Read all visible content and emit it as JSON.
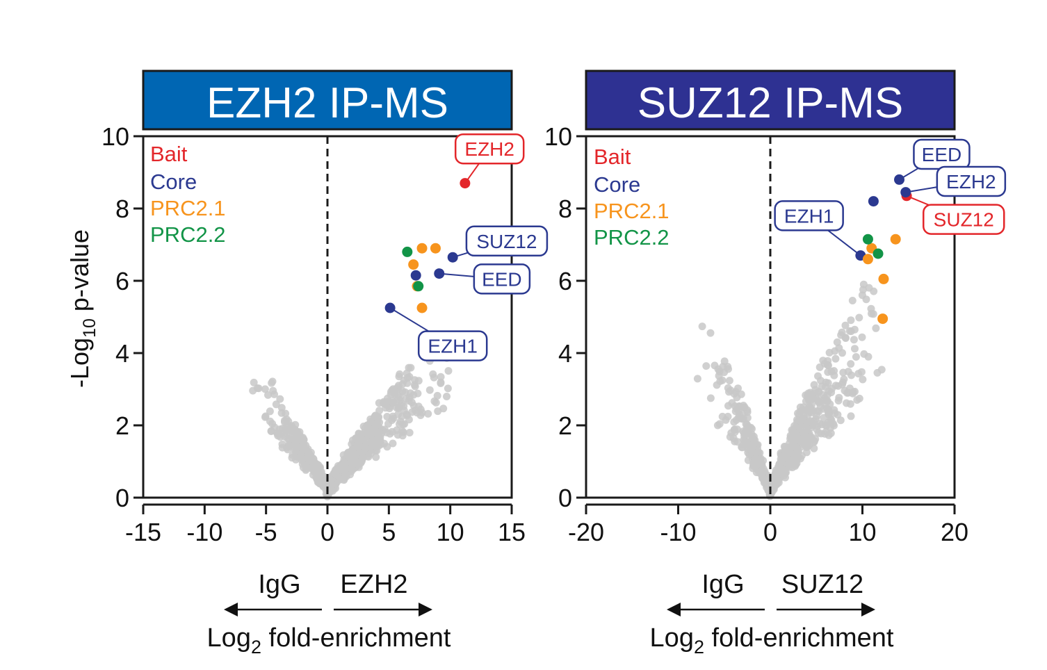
{
  "y_axis_label": {
    "prefix": "-Log",
    "sub": "10",
    "suffix": " p-value"
  },
  "legend": [
    {
      "label": "Bait",
      "color": "#e3262a"
    },
    {
      "label": "Core",
      "color": "#2b3990"
    },
    {
      "label": "PRC2.1",
      "color": "#f7941d"
    },
    {
      "label": "PRC2.2",
      "color": "#129447"
    }
  ],
  "colors": {
    "background": "#c8c8c8",
    "bait": "#e3262a",
    "core": "#2b3990",
    "prc21": "#f7941d",
    "prc22": "#129447",
    "panel1_header": "#0066b3",
    "panel2_header": "#2e3192"
  },
  "chart_data": [
    {
      "type": "scatter",
      "title": "EZH2 IP-MS",
      "x_ticks": [
        "-15",
        "-10",
        "-5",
        "0",
        "5",
        "10",
        "15"
      ],
      "y_ticks": [
        "0",
        "2",
        "4",
        "6",
        "8",
        "10"
      ],
      "xlim": [
        -15,
        15
      ],
      "ylim": [
        0,
        10
      ],
      "direction_left": "IgG",
      "direction_right": "EZH2",
      "xlabel": {
        "prefix": "Log",
        "sub": "2",
        "suffix": " fold-enrichment"
      },
      "reference_line_x": 0,
      "highlighted": [
        {
          "category": "bait",
          "x": 11.2,
          "y": 8.7
        },
        {
          "category": "core",
          "x": 10.2,
          "y": 6.65
        },
        {
          "category": "core",
          "x": 9.1,
          "y": 6.2
        },
        {
          "category": "core",
          "x": 5.1,
          "y": 5.25
        },
        {
          "category": "core",
          "x": 7.2,
          "y": 6.15
        },
        {
          "category": "prc21",
          "x": 7.7,
          "y": 6.9
        },
        {
          "category": "prc21",
          "x": 8.8,
          "y": 6.9
        },
        {
          "category": "prc21",
          "x": 7.0,
          "y": 6.45
        },
        {
          "category": "prc21",
          "x": 7.3,
          "y": 5.85
        },
        {
          "category": "prc21",
          "x": 7.7,
          "y": 5.25
        },
        {
          "category": "prc22",
          "x": 6.5,
          "y": 6.8
        },
        {
          "category": "prc22",
          "x": 7.4,
          "y": 5.85
        }
      ],
      "callouts": [
        {
          "label": "EZH2",
          "category": "bait",
          "point": [
            11.2,
            8.7
          ],
          "box": [
            13.2,
            9.65
          ]
        },
        {
          "label": "SUZ12",
          "category": "core",
          "point": [
            10.2,
            6.65
          ],
          "box": [
            14.6,
            7.1
          ]
        },
        {
          "label": "EED",
          "category": "core",
          "point": [
            9.1,
            6.2
          ],
          "box": [
            14.2,
            6.05
          ]
        },
        {
          "label": "EZH1",
          "category": "core",
          "point": [
            5.1,
            5.25
          ],
          "box": [
            10.2,
            4.2
          ]
        }
      ],
      "background_params": {
        "seed": 11,
        "n": 700,
        "x_min": -7,
        "x_max": 10.5,
        "spread": 0.55
      }
    },
    {
      "type": "scatter",
      "title": "SUZ12 IP-MS",
      "x_ticks": [
        "-20",
        "-10",
        "0",
        "10",
        "20"
      ],
      "y_ticks": [
        "0",
        "2",
        "4",
        "6",
        "8",
        "10"
      ],
      "xlim": [
        -20,
        20
      ],
      "ylim": [
        0,
        10
      ],
      "direction_left": "IgG",
      "direction_right": "SUZ12",
      "xlabel": {
        "prefix": "Log",
        "sub": "2",
        "suffix": " fold-enrichment"
      },
      "reference_line_x": 0,
      "highlighted": [
        {
          "category": "bait",
          "x": 14.8,
          "y": 8.35
        },
        {
          "category": "core",
          "x": 14.0,
          "y": 8.8
        },
        {
          "category": "core",
          "x": 14.7,
          "y": 8.45
        },
        {
          "category": "core",
          "x": 11.2,
          "y": 8.2
        },
        {
          "category": "core",
          "x": 9.8,
          "y": 6.7
        },
        {
          "category": "prc21",
          "x": 13.6,
          "y": 7.15
        },
        {
          "category": "prc21",
          "x": 11.0,
          "y": 6.9
        },
        {
          "category": "prc21",
          "x": 10.6,
          "y": 6.6
        },
        {
          "category": "prc21",
          "x": 12.3,
          "y": 6.05
        },
        {
          "category": "prc21",
          "x": 12.2,
          "y": 4.95
        },
        {
          "category": "prc22",
          "x": 10.6,
          "y": 7.15
        },
        {
          "category": "prc22",
          "x": 11.7,
          "y": 6.75
        }
      ],
      "callouts": [
        {
          "label": "EED",
          "category": "core",
          "point": [
            14.0,
            8.8
          ],
          "box": [
            18.6,
            9.5
          ]
        },
        {
          "label": "EZH2",
          "category": "core",
          "point": [
            14.7,
            8.45
          ],
          "box": [
            21.8,
            8.75
          ]
        },
        {
          "label": "SUZ12",
          "category": "bait",
          "point": [
            14.8,
            8.35
          ],
          "box": [
            21.0,
            7.7
          ]
        },
        {
          "label": "EZH1",
          "category": "core",
          "point": [
            9.8,
            6.7
          ],
          "box": [
            4.2,
            7.8
          ]
        }
      ],
      "background_params": {
        "seed": 27,
        "n": 650,
        "x_min": -8.5,
        "x_max": 12.5,
        "spread": 0.75
      }
    }
  ]
}
